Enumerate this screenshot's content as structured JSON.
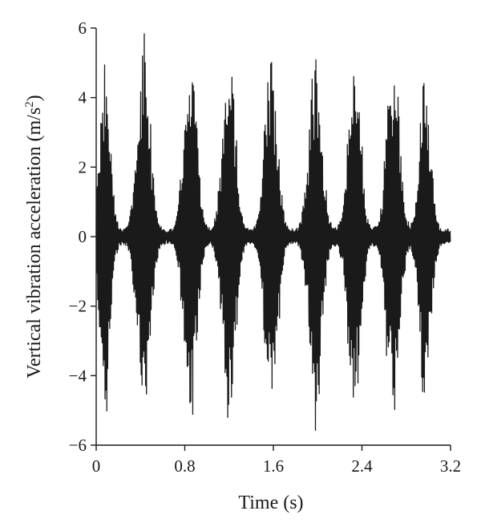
{
  "chart_data": {
    "type": "line",
    "title": "",
    "xlabel": "Time (s)",
    "ylabel_text": "Vertical vibration acceleration (m/s",
    "ylabel_sup": "2",
    "ylabel_close": ")",
    "xlim": [
      0,
      3.2
    ],
    "ylim": [
      -6,
      6
    ],
    "x_ticks": [
      0,
      0.8,
      1.6,
      2.4,
      3.2
    ],
    "x_tick_labels": [
      "0",
      "0.8",
      "1.6",
      "2.4",
      "3.2"
    ],
    "y_ticks": [
      -6,
      -4,
      -2,
      0,
      2,
      4,
      6
    ],
    "y_tick_labels": [
      "−6",
      "−4",
      "−2",
      "0",
      "2",
      "4",
      "6"
    ],
    "grid": false,
    "line_color": "#1a1a1a",
    "sample_interval_s": 0.002,
    "duration_s": 3.2,
    "oscillation_frequency_hz": 120,
    "bursts": [
      {
        "center_s": 0.08,
        "peak": 5.4,
        "width_s": 0.045
      },
      {
        "center_s": 0.43,
        "peak": 5.8,
        "width_s": 0.055
      },
      {
        "center_s": 0.85,
        "peak": 5.6,
        "width_s": 0.055
      },
      {
        "center_s": 1.2,
        "peak": 5.7,
        "width_s": 0.055
      },
      {
        "center_s": 1.58,
        "peak": 5.7,
        "width_s": 0.055
      },
      {
        "center_s": 1.98,
        "peak": 5.6,
        "width_s": 0.055
      },
      {
        "center_s": 2.33,
        "peak": 5.6,
        "width_s": 0.055
      },
      {
        "center_s": 2.68,
        "peak": 5.6,
        "width_s": 0.055
      },
      {
        "center_s": 2.97,
        "peak": 4.8,
        "width_s": 0.05
      }
    ]
  }
}
